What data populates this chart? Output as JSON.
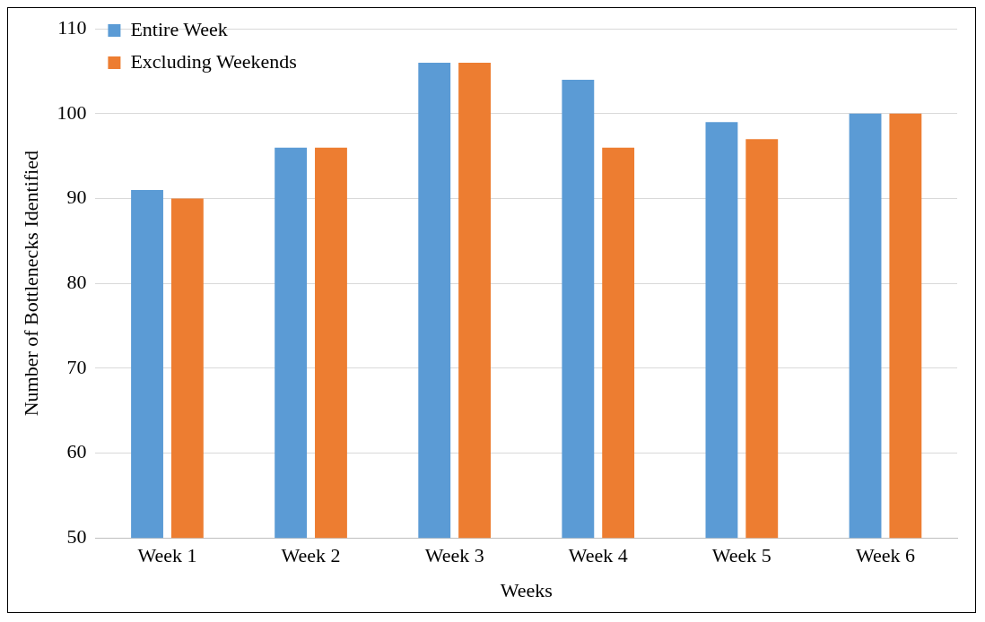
{
  "chart_data": {
    "type": "bar",
    "xlabel": "Weeks",
    "ylabel": "Number of Bottlenecks Identified",
    "categories": [
      "Week 1",
      "Week 2",
      "Week 3",
      "Week 4",
      "Week 5",
      "Week 6"
    ],
    "series": [
      {
        "name": "Entire Week",
        "color": "#5b9bd5",
        "values": [
          91,
          96,
          106,
          104,
          99,
          100
        ]
      },
      {
        "name": "Excluding Weekends",
        "color": "#ed7d31",
        "values": [
          90,
          96,
          106,
          96,
          97,
          100
        ]
      }
    ],
    "ylim": [
      50,
      110
    ],
    "yticks": [
      50,
      60,
      70,
      80,
      90,
      100,
      110
    ],
    "grid": "y",
    "legend": "top left"
  }
}
